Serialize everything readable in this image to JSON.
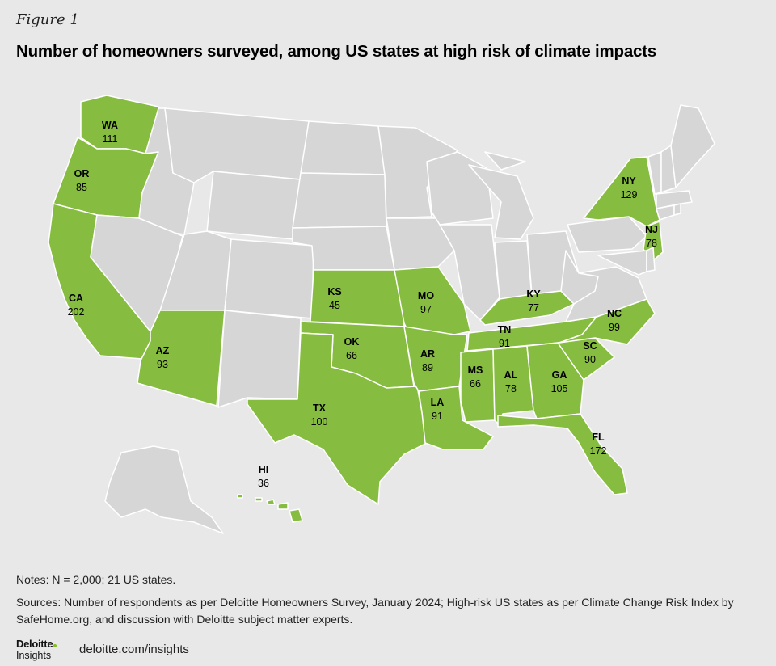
{
  "figure_label": "Figure 1",
  "title": "Number of homeowners surveyed, among US states at high risk of climate impacts",
  "colors": {
    "highlight": "#86bc3f",
    "other": "#d6d6d6",
    "border": "#ffffff",
    "background": "#e8e8e8",
    "brand_dot": "#86bc25"
  },
  "chart_data": {
    "type": "choropleth",
    "highlighted_states": [
      {
        "state": "WA",
        "value": "111"
      },
      {
        "state": "OR",
        "value": "85"
      },
      {
        "state": "CA",
        "value": "202"
      },
      {
        "state": "AZ",
        "value": "93"
      },
      {
        "state": "KS",
        "value": "45"
      },
      {
        "state": "OK",
        "value": "66"
      },
      {
        "state": "TX",
        "value": "100"
      },
      {
        "state": "MO",
        "value": "97"
      },
      {
        "state": "AR",
        "value": "89"
      },
      {
        "state": "LA",
        "value": "91"
      },
      {
        "state": "MS",
        "value": "66"
      },
      {
        "state": "AL",
        "value": "78"
      },
      {
        "state": "TN",
        "value": "91"
      },
      {
        "state": "KY",
        "value": "77"
      },
      {
        "state": "GA",
        "value": "105"
      },
      {
        "state": "FL",
        "value": "172"
      },
      {
        "state": "SC",
        "value": "90"
      },
      {
        "state": "NC",
        "value": "99"
      },
      {
        "state": "NY",
        "value": "129"
      },
      {
        "state": "NJ",
        "value": "78"
      },
      {
        "state": "HI",
        "value": "36"
      }
    ]
  },
  "notes": "Notes: N = 2,000; 21 US states.",
  "sources": "Sources: Number of respondents as per Deloitte Homeowners Survey, January 2024; High-risk US states as per Climate Change Risk Index by SafeHome.org, and discussion with Deloitte subject matter experts.",
  "footer": {
    "brand": "Deloitte",
    "brand_sub": "Insights",
    "url": "deloitte.com/insights"
  }
}
